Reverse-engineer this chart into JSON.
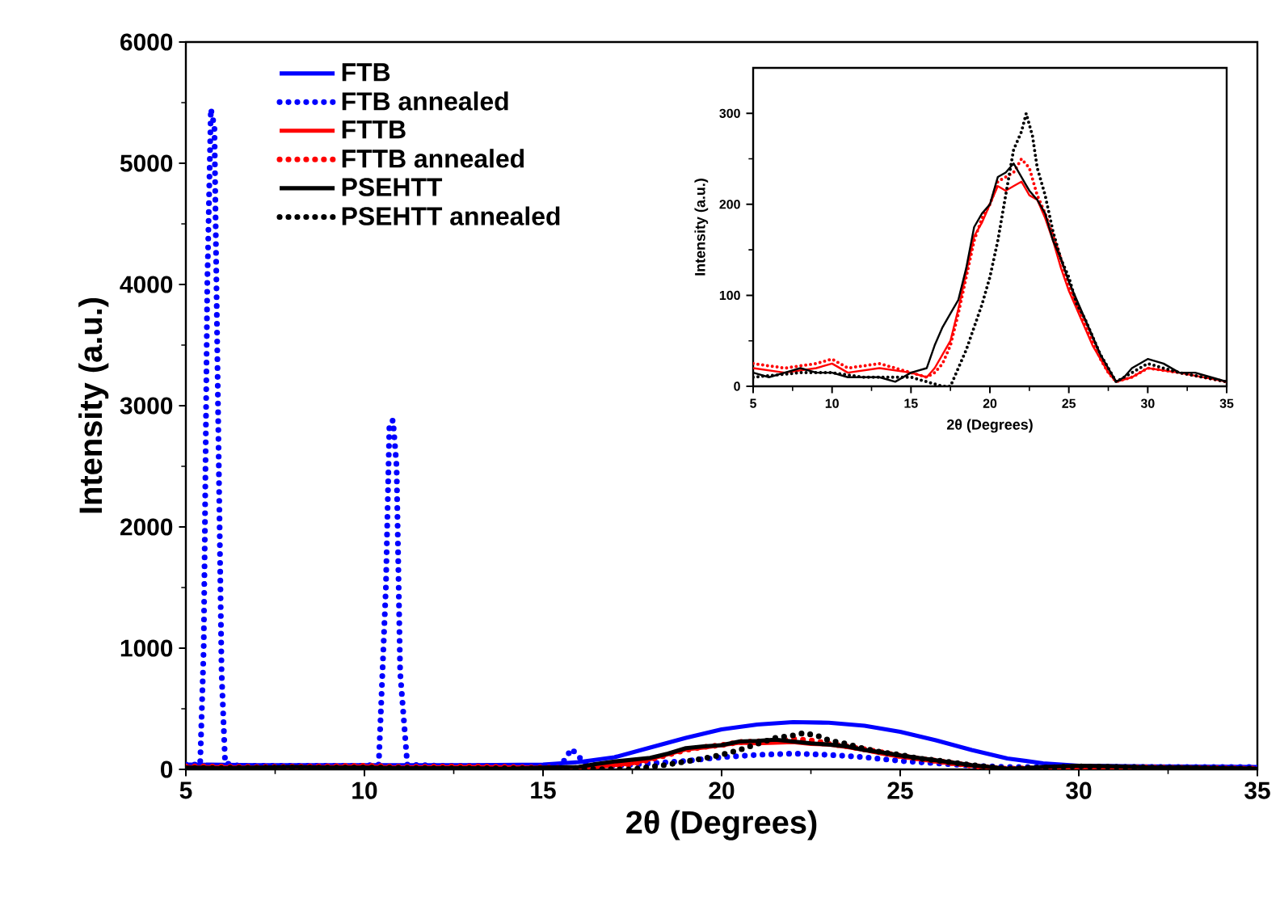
{
  "chart_data": [
    {
      "type": "line",
      "xlabel": "2θ (Degrees)",
      "ylabel": "Intensity (a.u.)",
      "xlim": [
        5,
        35
      ],
      "ylim": [
        0,
        6000
      ],
      "xticks": [
        5,
        10,
        15,
        20,
        25,
        30,
        35
      ],
      "yticks": [
        0,
        1000,
        2000,
        3000,
        4000,
        5000,
        6000
      ],
      "legend": "top left",
      "series": [
        {
          "name": "FTB",
          "color": "#0000ff",
          "line_style": "solid",
          "x": [
            5,
            7,
            9,
            11,
            13,
            15,
            16,
            17,
            18,
            19,
            20,
            21,
            22,
            23,
            24,
            25,
            26,
            27,
            28,
            29,
            30,
            32,
            35
          ],
          "values": [
            40,
            35,
            35,
            35,
            35,
            40,
            60,
            100,
            180,
            260,
            330,
            370,
            390,
            385,
            360,
            310,
            240,
            160,
            90,
            50,
            30,
            25,
            20
          ]
        },
        {
          "name": "FTB annealed",
          "color": "#0000ff",
          "line_style": "dotted",
          "x": [
            5,
            5.4,
            5.5,
            5.6,
            5.7,
            5.8,
            5.9,
            6.0,
            6.1,
            6.5,
            8,
            10,
            10.4,
            10.6,
            10.7,
            10.8,
            10.9,
            11.0,
            11.2,
            12,
            14,
            15.5,
            15.8,
            16.2,
            17,
            18,
            19,
            20,
            21,
            22,
            23,
            24,
            25,
            26,
            27,
            28,
            30,
            35
          ],
          "values": [
            40,
            40,
            1000,
            4000,
            5450,
            5300,
            3000,
            800,
            50,
            30,
            30,
            30,
            40,
            1500,
            2850,
            2880,
            2500,
            800,
            40,
            30,
            30,
            30,
            170,
            40,
            30,
            50,
            70,
            100,
            120,
            130,
            120,
            100,
            70,
            50,
            30,
            20,
            20,
            20
          ]
        },
        {
          "name": "FTTB",
          "color": "#ff0000",
          "line_style": "solid",
          "x": [
            5,
            7,
            9,
            10,
            11,
            13,
            15,
            16,
            16.5,
            17,
            17.5,
            18,
            18.5,
            19,
            19.5,
            20,
            20.5,
            21,
            21.5,
            22,
            22.5,
            23,
            23.5,
            24,
            24.5,
            25,
            25.5,
            26,
            26.5,
            27,
            27.5,
            28,
            29,
            30,
            32,
            35
          ],
          "values": [
            20,
            15,
            20,
            25,
            15,
            20,
            15,
            10,
            20,
            35,
            50,
            85,
            125,
            165,
            180,
            200,
            220,
            215,
            220,
            225,
            210,
            205,
            185,
            160,
            130,
            105,
            85,
            65,
            45,
            30,
            15,
            5,
            10,
            20,
            15,
            5
          ]
        },
        {
          "name": "FTTB annealed",
          "color": "#ff0000",
          "line_style": "dotted",
          "x": [
            5,
            7,
            9,
            10,
            11,
            13,
            15,
            16,
            16.5,
            17,
            17.5,
            18,
            18.5,
            19,
            19.5,
            20,
            20.5,
            21,
            21.5,
            22,
            22.5,
            23,
            23.5,
            24,
            24.5,
            25,
            25.5,
            26,
            26.5,
            27,
            27.5,
            28,
            29,
            30,
            32,
            35
          ],
          "values": [
            25,
            20,
            25,
            30,
            20,
            25,
            15,
            10,
            15,
            25,
            45,
            80,
            120,
            160,
            185,
            200,
            225,
            230,
            235,
            250,
            240,
            210,
            190,
            165,
            140,
            110,
            90,
            70,
            50,
            30,
            15,
            5,
            10,
            20,
            15,
            5
          ]
        },
        {
          "name": "PSEHTT",
          "color": "#000000",
          "line_style": "solid",
          "x": [
            5,
            6,
            7,
            8,
            9,
            10,
            11,
            12,
            13,
            14,
            15,
            16,
            16.5,
            17,
            17.5,
            18,
            18.5,
            19,
            19.5,
            20,
            20.5,
            21,
            21.5,
            22,
            22.5,
            23,
            23.5,
            24,
            24.5,
            25,
            25.5,
            26,
            26.5,
            27,
            27.5,
            28,
            28.5,
            29,
            30,
            31,
            32,
            33,
            34,
            35
          ],
          "values": [
            15,
            10,
            15,
            20,
            15,
            15,
            10,
            10,
            10,
            5,
            15,
            20,
            45,
            65,
            80,
            95,
            130,
            175,
            190,
            200,
            230,
            235,
            245,
            230,
            215,
            205,
            190,
            160,
            140,
            115,
            95,
            75,
            55,
            35,
            20,
            5,
            10,
            20,
            30,
            25,
            15,
            15,
            10,
            5
          ]
        },
        {
          "name": "PSEHTT annealed",
          "color": "#000000",
          "line_style": "dotted",
          "x": [
            5,
            8,
            10,
            12,
            15,
            17,
            17.5,
            18,
            18.5,
            19,
            19.5,
            20,
            20.5,
            21,
            21.5,
            22,
            22.3,
            22.7,
            23,
            23.5,
            24,
            24.5,
            25,
            25.5,
            26,
            26.5,
            27,
            27.5,
            28,
            29,
            30,
            32,
            35
          ],
          "values": [
            10,
            15,
            15,
            10,
            10,
            0,
            0,
            20,
            40,
            65,
            90,
            120,
            160,
            210,
            260,
            280,
            300,
            275,
            240,
            210,
            170,
            140,
            120,
            90,
            75,
            55,
            35,
            20,
            5,
            15,
            25,
            15,
            5
          ]
        }
      ]
    },
    {
      "type": "line",
      "xlabel": "2θ (Degrees)",
      "ylabel": "Intensity (a.u.)",
      "xlim": [
        5,
        35
      ],
      "ylim": [
        0,
        350
      ],
      "xticks": [
        5,
        10,
        15,
        20,
        25,
        30,
        35
      ],
      "yticks": [
        0,
        100,
        200,
        300
      ],
      "series": [
        {
          "color": "#ff0000",
          "line_style": "solid",
          "x": [
            5,
            7,
            9,
            10,
            11,
            13,
            15,
            16,
            16.5,
            17,
            17.5,
            18,
            18.5,
            19,
            19.5,
            20,
            20.5,
            21,
            21.5,
            22,
            22.5,
            23,
            23.5,
            24,
            24.5,
            25,
            25.5,
            26,
            26.5,
            27,
            27.5,
            28,
            29,
            30,
            32,
            35
          ],
          "values": [
            20,
            15,
            20,
            25,
            15,
            20,
            15,
            10,
            20,
            35,
            50,
            85,
            125,
            165,
            180,
            200,
            220,
            215,
            220,
            225,
            210,
            205,
            185,
            160,
            130,
            105,
            85,
            65,
            45,
            30,
            15,
            5,
            10,
            20,
            15,
            5
          ]
        },
        {
          "color": "#ff0000",
          "line_style": "dotted",
          "x": [
            5,
            7,
            9,
            10,
            11,
            13,
            15,
            16,
            16.5,
            17,
            17.5,
            18,
            18.5,
            19,
            19.5,
            20,
            20.5,
            21,
            21.5,
            22,
            22.5,
            23,
            23.5,
            24,
            24.5,
            25,
            25.5,
            26,
            26.5,
            27,
            27.5,
            28,
            29,
            30,
            32,
            35
          ],
          "values": [
            25,
            20,
            25,
            30,
            20,
            25,
            15,
            10,
            15,
            25,
            45,
            80,
            120,
            160,
            185,
            200,
            225,
            230,
            235,
            250,
            240,
            210,
            190,
            165,
            140,
            110,
            90,
            70,
            50,
            30,
            15,
            5,
            10,
            20,
            15,
            5
          ]
        },
        {
          "color": "#000000",
          "line_style": "solid",
          "x": [
            5,
            6,
            7,
            8,
            9,
            10,
            11,
            12,
            13,
            14,
            15,
            16,
            16.5,
            17,
            17.5,
            18,
            18.5,
            19,
            19.5,
            20,
            20.5,
            21,
            21.5,
            22,
            22.5,
            23,
            23.5,
            24,
            24.5,
            25,
            25.5,
            26,
            26.5,
            27,
            27.5,
            28,
            28.5,
            29,
            30,
            31,
            32,
            33,
            34,
            35
          ],
          "values": [
            15,
            10,
            15,
            20,
            15,
            15,
            10,
            10,
            10,
            5,
            15,
            20,
            45,
            65,
            80,
            95,
            130,
            175,
            190,
            200,
            230,
            235,
            245,
            230,
            215,
            205,
            190,
            160,
            140,
            115,
            95,
            75,
            55,
            35,
            20,
            5,
            10,
            20,
            30,
            25,
            15,
            15,
            10,
            5
          ]
        },
        {
          "color": "#000000",
          "line_style": "dotted",
          "x": [
            5,
            8,
            10,
            12,
            15,
            17,
            17.5,
            18,
            18.5,
            19,
            19.5,
            20,
            20.5,
            21,
            21.5,
            22,
            22.3,
            22.7,
            23,
            23.5,
            24,
            24.5,
            25,
            25.5,
            26,
            26.5,
            27,
            27.5,
            28,
            29,
            30,
            32,
            35
          ],
          "values": [
            10,
            15,
            15,
            10,
            10,
            0,
            0,
            20,
            40,
            65,
            90,
            120,
            160,
            210,
            260,
            280,
            300,
            275,
            240,
            210,
            170,
            140,
            120,
            90,
            75,
            55,
            35,
            20,
            5,
            15,
            25,
            15,
            5
          ]
        }
      ]
    }
  ]
}
